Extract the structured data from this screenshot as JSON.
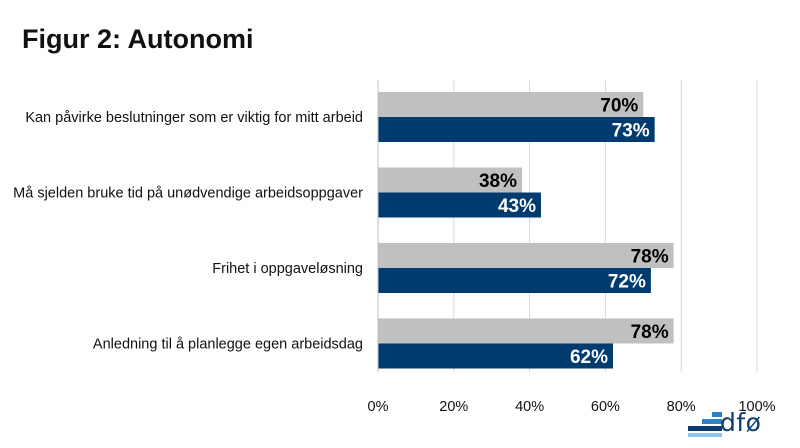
{
  "title": "Figur 2: Autonomi",
  "logo": {
    "text": "dfø",
    "colors": [
      "#0c3c73",
      "#2d83c6",
      "#8cc6ee"
    ]
  },
  "chart_data": {
    "type": "bar",
    "orientation": "horizontal",
    "title": "Figur 2: Autonomi",
    "categories": [
      "Kan påvirke beslutninger som er viktig for mitt arbeid",
      "Må sjelden bruke tid på unødvendige arbeidsoppgaver",
      "Frihet i oppgaveløsning",
      "Anledning til å planlegge egen arbeidsdag"
    ],
    "series": [
      {
        "name": "grey",
        "color": "#c0c0c0",
        "label_color": "#000000",
        "values": [
          70,
          38,
          78,
          78
        ]
      },
      {
        "name": "navy",
        "color": "#003b6f",
        "label_color": "#ffffff",
        "values": [
          73,
          43,
          72,
          62
        ]
      }
    ],
    "xlim": [
      0,
      100
    ],
    "xticks": [
      0,
      20,
      40,
      60,
      80,
      100
    ],
    "tick_labels": [
      "0%",
      "20%",
      "40%",
      "60%",
      "80%",
      "100%"
    ],
    "value_suffix": "%",
    "grid": true,
    "legend": "none"
  }
}
